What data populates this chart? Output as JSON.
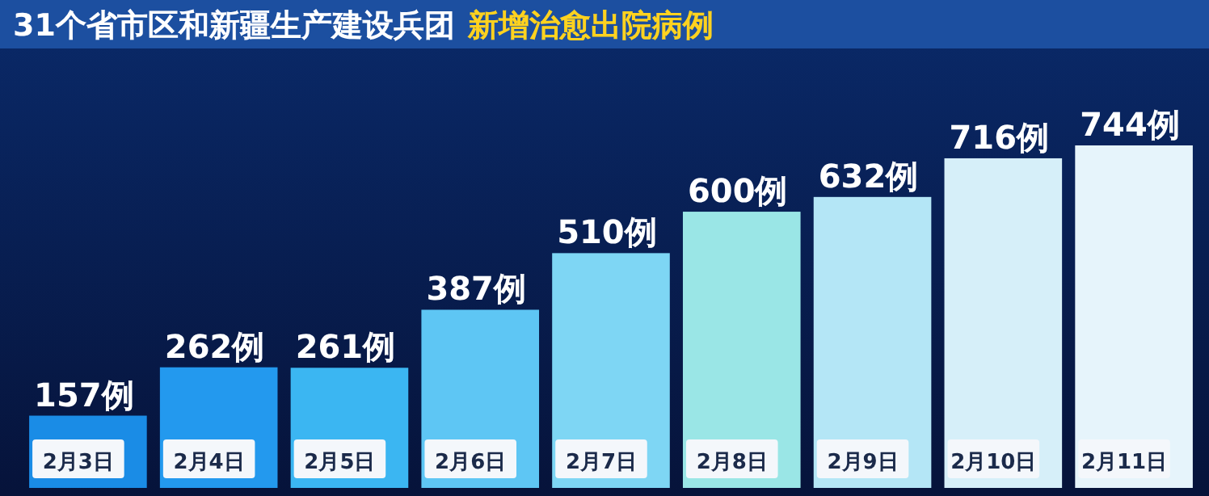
{
  "chart_data": {
    "type": "bar",
    "title": "31个省市区和新疆生产建设兵团",
    "subtitle": "新增治愈出院病例",
    "categories": [
      "2月3日",
      "2月4日",
      "2月5日",
      "2月6日",
      "2月7日",
      "2月8日",
      "2月9日",
      "2月10日",
      "2月11日"
    ],
    "values": [
      157,
      262,
      261,
      387,
      510,
      600,
      632,
      716,
      744
    ],
    "colors": [
      "#1a8ce6",
      "#2399ee",
      "#3bb6f2",
      "#5ec6f4",
      "#7ed6f4",
      "#9ae6e6",
      "#b4e6f6",
      "#d6eff9",
      "#e6f4fb"
    ],
    "value_labels": [
      "157例",
      "262例",
      "261例",
      "387例",
      "510例",
      "600例",
      "632例",
      "716例",
      "744例"
    ]
  }
}
